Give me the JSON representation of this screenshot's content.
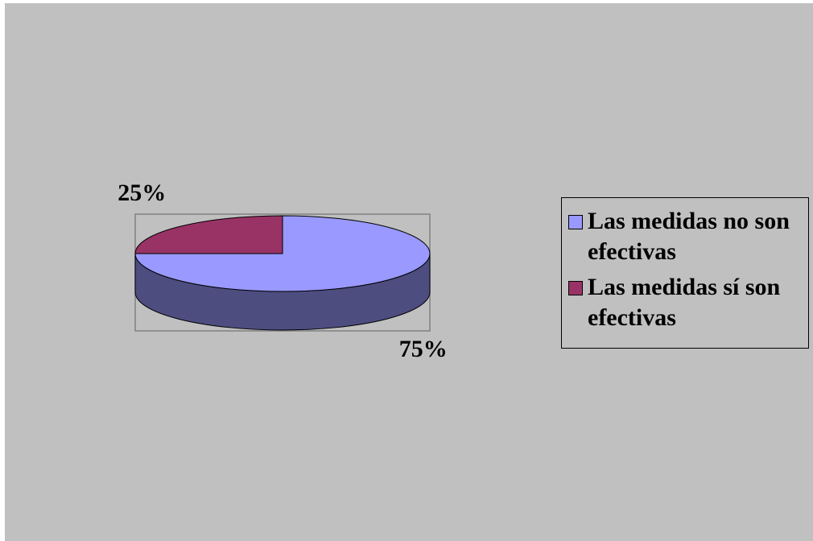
{
  "chart_data": {
    "type": "pie",
    "categories": [
      "Las medidas no son efectivas",
      "Las medidas sí son efectivas"
    ],
    "values": [
      75,
      25
    ],
    "value_labels": [
      "75%",
      "25%"
    ],
    "colors": [
      "#9999ff",
      "#993366"
    ],
    "legend": "right"
  }
}
